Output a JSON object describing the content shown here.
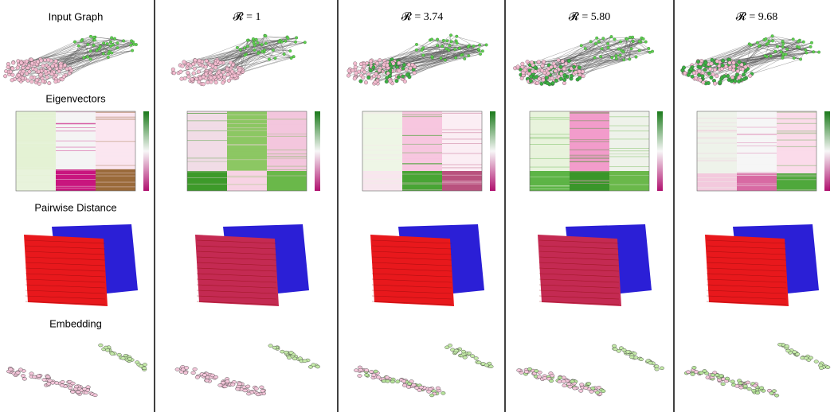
{
  "row_labels": [
    "Input Graph",
    "Eigenvectors",
    "Pairwise Distance",
    "Embedding"
  ],
  "columns": [
    {
      "title": "𝓡 = 1"
    },
    {
      "title": "𝓡 = 3.74"
    },
    {
      "title": "𝓡 = 5.80"
    },
    {
      "title": "𝓡 = 9.68"
    }
  ]
}
